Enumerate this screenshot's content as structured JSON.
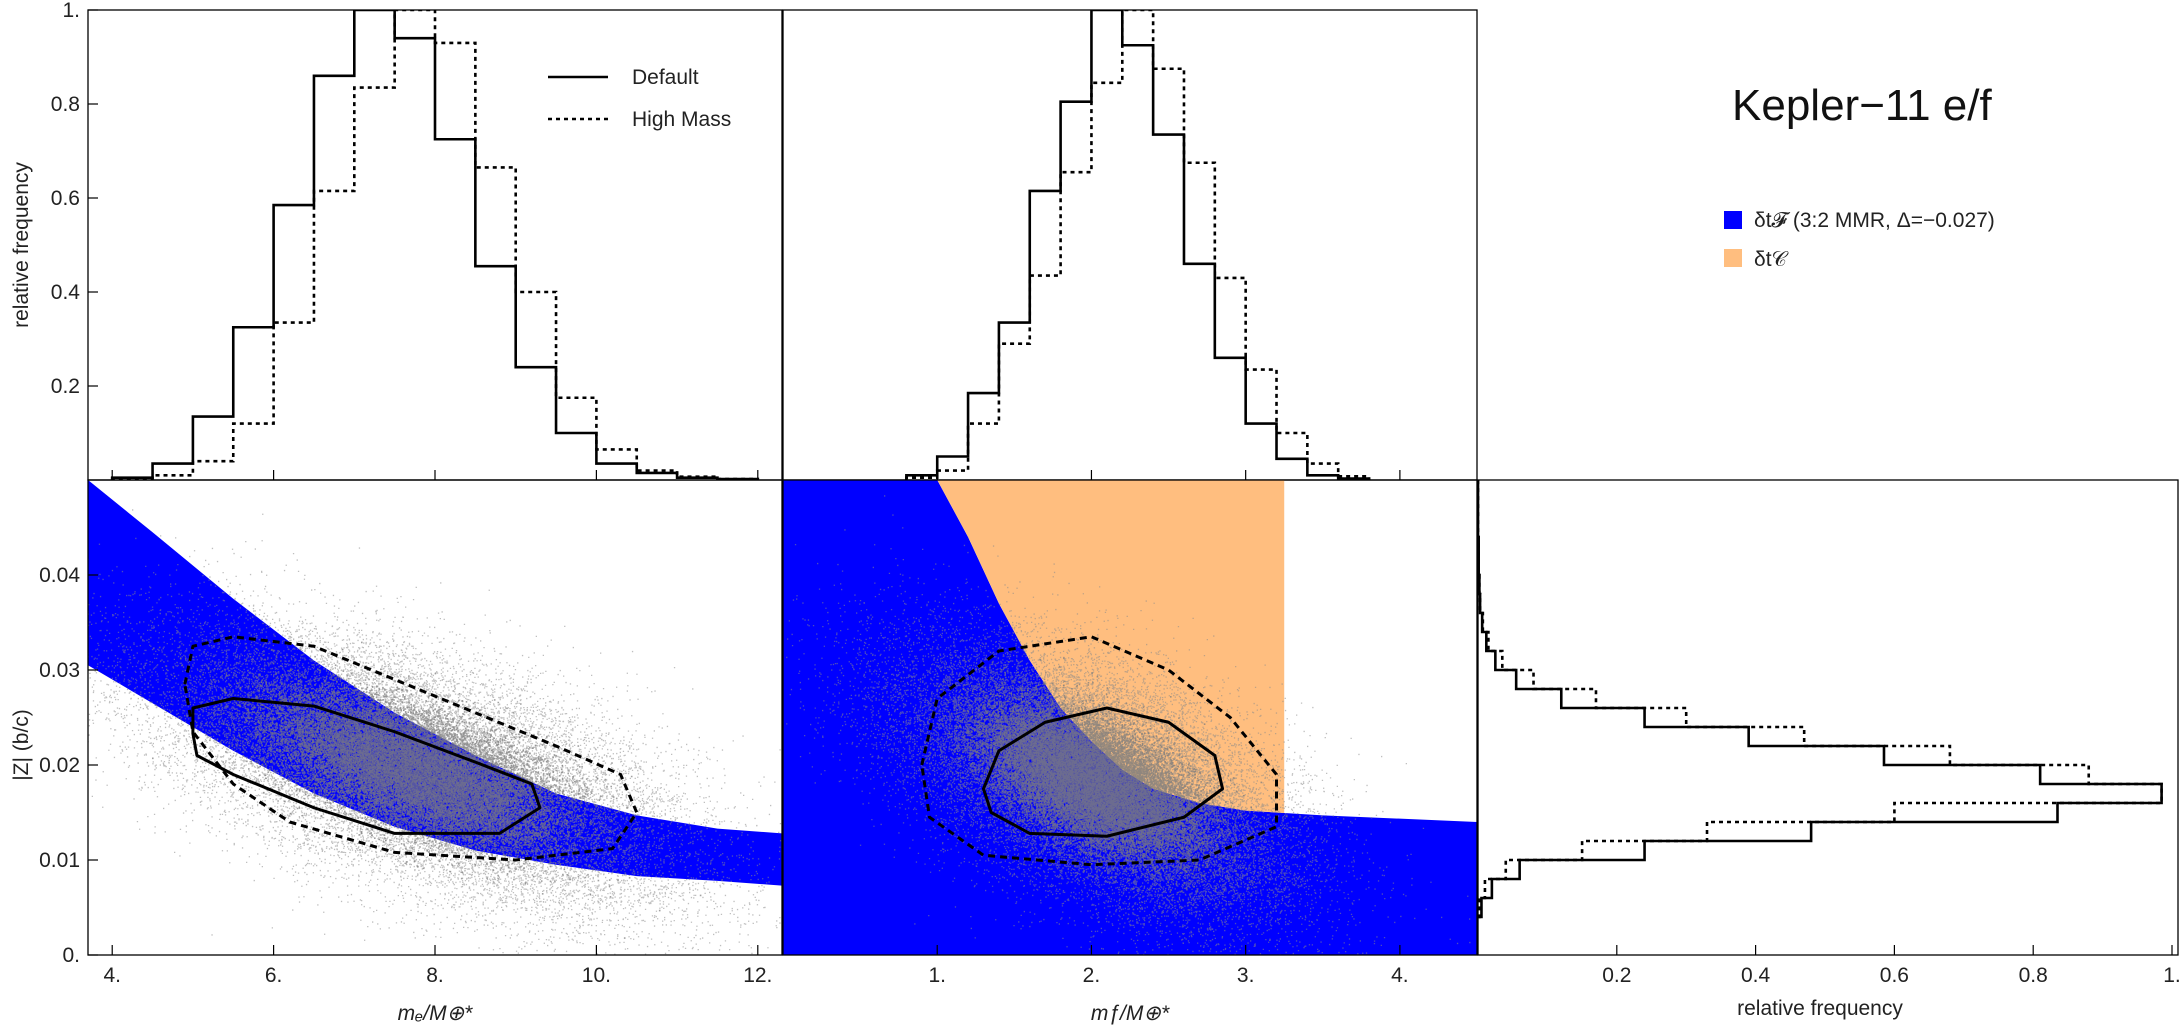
{
  "colors": {
    "blue": "#0000ff",
    "orange": "#ffbe7f",
    "scatter": "#8a8a8a",
    "core": "#7b7b7b",
    "line": "#000000"
  },
  "title": "Kepler−11 e/f",
  "hist_legend": [
    "Default",
    "High Mass"
  ],
  "region_legend": [
    {
      "label": "δt𝓕 (3:2 MMR, Δ=−0.027)",
      "color": "#0000ff"
    },
    {
      "label": "δt𝒞",
      "color": "#ffbe7f"
    }
  ],
  "chart_data": [
    {
      "id": "hist_me",
      "type": "histogram",
      "xlim": [
        3.7,
        12.3
      ],
      "ylim": [
        0,
        1
      ],
      "ylabel": "relative frequency",
      "yticks": [
        0.2,
        0.4,
        0.6,
        0.8,
        1
      ],
      "yticklabels": [
        "0.2",
        "0.4",
        "0.6",
        "0.8",
        "1."
      ],
      "edges": [
        4.0,
        4.5,
        5.0,
        5.5,
        6.0,
        6.5,
        7.0,
        7.5,
        8.0,
        8.5,
        9.0,
        9.5,
        10.0,
        10.5,
        11.0,
        11.5,
        12.0
      ],
      "series": [
        {
          "name": "Default",
          "style": "solid",
          "values": [
            0.005,
            0.035,
            0.135,
            0.325,
            0.585,
            0.86,
            1.0,
            0.94,
            0.725,
            0.455,
            0.24,
            0.1,
            0.035,
            0.015,
            0.005,
            0.002
          ]
        },
        {
          "name": "High Mass",
          "style": "dashed",
          "values": [
            0.003,
            0.01,
            0.04,
            0.12,
            0.335,
            0.615,
            0.835,
            1.0,
            0.93,
            0.665,
            0.4,
            0.175,
            0.065,
            0.02,
            0.007,
            0.002
          ]
        }
      ]
    },
    {
      "id": "hist_mf",
      "type": "histogram",
      "xlim": [
        0.0,
        4.5
      ],
      "ylim": [
        0,
        1
      ],
      "edges": [
        0.8,
        1.0,
        1.2,
        1.4,
        1.6,
        1.8,
        2.0,
        2.2,
        2.4,
        2.6,
        2.8,
        3.0,
        3.2,
        3.4,
        3.6,
        3.8
      ],
      "series": [
        {
          "name": "Default",
          "style": "solid",
          "values": [
            0.01,
            0.05,
            0.185,
            0.335,
            0.615,
            0.805,
            1.0,
            0.925,
            0.735,
            0.46,
            0.26,
            0.12,
            0.045,
            0.01,
            0.003
          ]
        },
        {
          "name": "High Mass",
          "style": "dashed",
          "values": [
            0.005,
            0.02,
            0.12,
            0.29,
            0.435,
            0.655,
            0.845,
            1.0,
            0.875,
            0.675,
            0.43,
            0.235,
            0.1,
            0.035,
            0.008
          ]
        }
      ]
    },
    {
      "id": "scatter_me",
      "type": "scatter",
      "xlabel": "mₑ/M⊕*",
      "ylabel": "|Z| (b/c)",
      "xlim": [
        3.7,
        12.3
      ],
      "ylim": [
        0,
        0.05
      ],
      "xticks": [
        4,
        6,
        8,
        10,
        12
      ],
      "xticklabels": [
        "4.",
        "6.",
        "8.",
        "10.",
        "12."
      ],
      "yticks": [
        0,
        0.01,
        0.02,
        0.03,
        0.04
      ],
      "yticklabels": [
        "0.",
        "0.01",
        "0.02",
        "0.03",
        "0.04"
      ],
      "blue_band": {
        "upper": [
          [
            3.7,
            0.05
          ],
          [
            4.5,
            0.0445
          ],
          [
            5.5,
            0.0375
          ],
          [
            6.5,
            0.031
          ],
          [
            7.5,
            0.0255
          ],
          [
            8.5,
            0.021
          ],
          [
            9.5,
            0.017
          ],
          [
            10.5,
            0.0147
          ],
          [
            11.5,
            0.0133
          ],
          [
            12.3,
            0.0128
          ]
        ],
        "lower": [
          [
            3.7,
            0.0305
          ],
          [
            4.5,
            0.0265
          ],
          [
            5.5,
            0.0215
          ],
          [
            6.5,
            0.017
          ],
          [
            7.5,
            0.0135
          ],
          [
            8.5,
            0.011
          ],
          [
            9.5,
            0.0095
          ],
          [
            10.5,
            0.0083
          ],
          [
            11.5,
            0.0078
          ],
          [
            12.3,
            0.0073
          ]
        ]
      },
      "cloud": {
        "cx": 7.75,
        "cy": 0.0195,
        "sx": 1.55,
        "sy": 0.0068,
        "rho": -0.6,
        "n": 26000
      },
      "contour_inner": [
        [
          5.0,
          0.0233
        ],
        [
          5.0,
          0.026
        ],
        [
          5.5,
          0.027
        ],
        [
          6.5,
          0.0262
        ],
        [
          7.5,
          0.0235
        ],
        [
          8.5,
          0.0203
        ],
        [
          9.2,
          0.018
        ],
        [
          9.3,
          0.0155
        ],
        [
          8.8,
          0.0128
        ],
        [
          7.5,
          0.0128
        ],
        [
          6.5,
          0.0155
        ],
        [
          5.5,
          0.019
        ],
        [
          5.05,
          0.021
        ]
      ],
      "contour_outer": [
        [
          4.9,
          0.0285
        ],
        [
          5.0,
          0.0325
        ],
        [
          5.5,
          0.0335
        ],
        [
          6.5,
          0.0325
        ],
        [
          7.5,
          0.029
        ],
        [
          8.5,
          0.0255
        ],
        [
          9.5,
          0.022
        ],
        [
          10.3,
          0.019
        ],
        [
          10.5,
          0.015
        ],
        [
          10.2,
          0.0112
        ],
        [
          9.0,
          0.01
        ],
        [
          7.5,
          0.0108
        ],
        [
          6.2,
          0.014
        ],
        [
          5.5,
          0.018
        ],
        [
          5.0,
          0.0235
        ]
      ]
    },
    {
      "id": "scatter_mf",
      "type": "scatter",
      "xlabel": "mƒ/M⊕*",
      "xlim": [
        0.0,
        4.5
      ],
      "ylim": [
        0,
        0.05
      ],
      "xticks": [
        1,
        2,
        3,
        4
      ],
      "xticklabels": [
        "1.",
        "2.",
        "3.",
        "4."
      ],
      "blue_region": {
        "upper": [
          [
            0.0,
            0.05
          ],
          [
            1.0,
            0.05
          ],
          [
            1.2,
            0.044
          ],
          [
            1.4,
            0.037
          ],
          [
            1.6,
            0.031
          ],
          [
            1.8,
            0.026
          ],
          [
            2.0,
            0.0225
          ],
          [
            2.2,
            0.0195
          ],
          [
            2.4,
            0.0175
          ],
          [
            2.7,
            0.016
          ],
          [
            3.0,
            0.0152
          ],
          [
            3.5,
            0.0147
          ],
          [
            4.5,
            0.014
          ]
        ]
      },
      "orange_region": {
        "xmax": 3.25,
        "upper": 0.05
      },
      "cloud": {
        "cx": 2.0,
        "cy": 0.0185,
        "sx": 0.6,
        "sy": 0.0066,
        "rho": -0.55,
        "n": 30000
      },
      "contour_inner": [
        [
          1.3,
          0.0175
        ],
        [
          1.4,
          0.0215
        ],
        [
          1.7,
          0.0245
        ],
        [
          2.1,
          0.026
        ],
        [
          2.5,
          0.0245
        ],
        [
          2.8,
          0.021
        ],
        [
          2.85,
          0.0175
        ],
        [
          2.6,
          0.0145
        ],
        [
          2.1,
          0.0125
        ],
        [
          1.6,
          0.0128
        ],
        [
          1.35,
          0.015
        ]
      ],
      "contour_outer": [
        [
          0.9,
          0.02
        ],
        [
          1.0,
          0.027
        ],
        [
          1.4,
          0.032
        ],
        [
          2.0,
          0.0335
        ],
        [
          2.5,
          0.03
        ],
        [
          2.9,
          0.025
        ],
        [
          3.2,
          0.019
        ],
        [
          3.2,
          0.0135
        ],
        [
          2.7,
          0.01
        ],
        [
          2.0,
          0.0095
        ],
        [
          1.3,
          0.0105
        ],
        [
          0.95,
          0.0145
        ]
      ]
    },
    {
      "id": "hist_z",
      "type": "histogram-horizontal",
      "xlabel": "relative frequency",
      "xlim": [
        0,
        1
      ],
      "ylim": [
        0,
        0.05
      ],
      "xticks": [
        0.2,
        0.4,
        0.6,
        0.8,
        1
      ],
      "xticklabels": [
        "0.2",
        "0.4",
        "0.6",
        "0.8",
        "1."
      ],
      "edges": [
        0.004,
        0.006,
        0.008,
        0.01,
        0.012,
        0.014,
        0.016,
        0.018,
        0.02,
        0.022,
        0.024,
        0.026,
        0.028,
        0.03,
        0.032,
        0.034,
        0.036,
        0.038,
        0.04,
        0.042,
        0.044,
        0.046,
        0.048,
        0.05
      ],
      "series": [
        {
          "name": "Default",
          "style": "solid",
          "values": [
            0.005,
            0.02,
            0.06,
            0.24,
            0.48,
            0.835,
            0.985,
            0.81,
            0.585,
            0.39,
            0.24,
            0.12,
            0.055,
            0.025,
            0.012,
            0.006,
            0.003,
            0.002,
            0.001,
            0.001,
            0.0,
            0.0,
            0.0
          ]
        },
        {
          "name": "High Mass",
          "style": "dashed",
          "values": [
            0.002,
            0.01,
            0.04,
            0.15,
            0.33,
            0.6,
            0.985,
            0.88,
            0.68,
            0.47,
            0.3,
            0.17,
            0.08,
            0.035,
            0.015,
            0.007,
            0.003,
            0.002,
            0.001,
            0.001,
            0.0,
            0.0,
            0.0
          ]
        }
      ]
    }
  ]
}
